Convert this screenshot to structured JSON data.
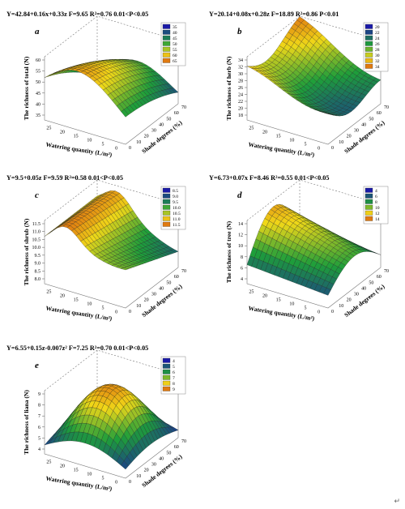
{
  "chart_data": [
    {
      "panel": "a",
      "type": "surface",
      "equation": "Y=42.84+0.16x+0.33z  F=9.65  R²=0.76  0.01<P<0.05",
      "zlabel": "The richness of total (N)",
      "xlabel": "Watering quantity (L/m²)",
      "ylabel": "Shade degrees (%)",
      "x_ticks": [
        "25",
        "20",
        "15",
        "10",
        "5",
        "0"
      ],
      "y_ticks": [
        "0",
        "10",
        "20",
        "30",
        "40",
        "50",
        "60",
        "70"
      ],
      "z_ticks": [
        "35",
        "40",
        "45",
        "50",
        "55",
        "60"
      ],
      "legend": [
        "35",
        "40",
        "45",
        "50",
        "55",
        "60",
        "65"
      ],
      "zlim": [
        35,
        65
      ]
    },
    {
      "panel": "b",
      "type": "surface",
      "equation": "Y=20.14+0.08x+0.28z  F=18.89  R²=0.86  P<0.01",
      "zlabel": "The richness of herb (N)",
      "xlabel": "Watering quantity (L/m²)",
      "ylabel": "Shade degrees (%)",
      "x_ticks": [
        "25",
        "20",
        "15",
        "10",
        "5",
        "0"
      ],
      "y_ticks": [
        "0",
        "10",
        "20",
        "30",
        "40",
        "50",
        "60",
        "70"
      ],
      "z_ticks": [
        "18",
        "20",
        "22",
        "24",
        "26",
        "28",
        "30",
        "32",
        "34"
      ],
      "legend": [
        "20",
        "22",
        "24",
        "26",
        "28",
        "30",
        "32",
        "34"
      ],
      "zlim": [
        18,
        34
      ]
    },
    {
      "panel": "c",
      "type": "surface",
      "equation": "Y=9.5+0.05z  F=9.59  R²=0.58  0.01<P<0.05",
      "zlabel": "The richness of shrub (N)",
      "xlabel": "Watering quantity (L/m²)",
      "ylabel": "Shade degrees (%)",
      "x_ticks": [
        "25",
        "20",
        "15",
        "10",
        "5",
        "0"
      ],
      "y_ticks": [
        "0",
        "10",
        "20",
        "30",
        "40",
        "50",
        "60",
        "70"
      ],
      "z_ticks": [
        "8.0",
        "8.5",
        "9.0",
        "9.5",
        "10.0",
        "10.5",
        "11.0",
        "11.5"
      ],
      "legend": [
        "8.5",
        "9.0",
        "9.5",
        "10.0",
        "10.5",
        "11.0",
        "11.5"
      ],
      "zlim": [
        8.0,
        11.8
      ]
    },
    {
      "panel": "d",
      "type": "surface",
      "equation": "Y=6.73+0.07x  F=8.46  R²=0.55  0.01<P<0.05",
      "zlabel": "The richness of tree (N)",
      "xlabel": "Watering quantity (L/m²)",
      "ylabel": "Shade degrees (%)",
      "x_ticks": [
        "25",
        "20",
        "15",
        "10",
        "5",
        "0"
      ],
      "y_ticks": [
        "0",
        "10",
        "20",
        "30",
        "40",
        "50",
        "60",
        "70"
      ],
      "z_ticks": [
        "4",
        "6",
        "8",
        "10",
        "12",
        "14"
      ],
      "legend": [
        "4",
        "6",
        "8",
        "10",
        "12",
        "14"
      ],
      "zlim": [
        4,
        14
      ]
    },
    {
      "panel": "e",
      "type": "surface",
      "equation": "Y=6.55+0.15z-0.007z²  F=7.25  R²=0.70  0.01<P<0.05",
      "zlabel": "The richness of liana (N)",
      "xlabel": "Watering quantity (L/m²)",
      "ylabel": "Shade degrees (%)",
      "x_ticks": [
        "25",
        "20",
        "15",
        "10",
        "5",
        "0"
      ],
      "y_ticks": [
        "0",
        "10",
        "20",
        "30",
        "40",
        "50",
        "60",
        "70"
      ],
      "z_ticks": [
        "4",
        "5",
        "6",
        "7",
        "8",
        "9"
      ],
      "legend": [
        "4",
        "5",
        "6",
        "7",
        "8",
        "9"
      ],
      "zlim": [
        4,
        9
      ]
    }
  ],
  "colors": {
    "low": "#1a1aa8",
    "mid": "#1e9e3a",
    "high": "#f0d818",
    "peak": "#e07a10"
  },
  "footer_mark": "↵"
}
